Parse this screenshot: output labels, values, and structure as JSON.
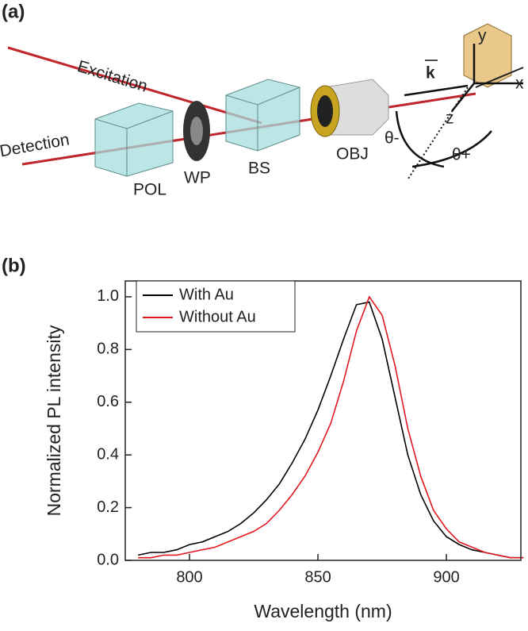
{
  "diagram": {
    "panel_label": "(a)",
    "excitation": "Excitation",
    "detection": "Detection",
    "pol": "POL",
    "wp": "WP",
    "bs": "BS",
    "obj": "OBJ",
    "theta_minus": "θ-",
    "theta_plus": "θ+",
    "axis_x": "x",
    "axis_y": "y",
    "axis_z": "z",
    "wavevector": "k"
  },
  "chart_data": {
    "type": "line",
    "panel_label": "(b)",
    "xlabel": "Wavelength (nm)",
    "ylabel": "Normalized PL intensity",
    "x": [
      780,
      785,
      790,
      795,
      800,
      805,
      810,
      815,
      820,
      825,
      830,
      835,
      840,
      845,
      850,
      855,
      860,
      865,
      870,
      875,
      880,
      885,
      890,
      895,
      900,
      905,
      910,
      915,
      920,
      925,
      930
    ],
    "series": [
      {
        "name": "With Au",
        "color": "#000000",
        "values": [
          0.02,
          0.03,
          0.03,
          0.04,
          0.06,
          0.07,
          0.09,
          0.11,
          0.14,
          0.18,
          0.23,
          0.29,
          0.37,
          0.46,
          0.57,
          0.7,
          0.84,
          0.97,
          0.98,
          0.84,
          0.62,
          0.4,
          0.25,
          0.15,
          0.09,
          0.06,
          0.04,
          0.03,
          0.02,
          0.01,
          0.01
        ]
      },
      {
        "name": "Without Au",
        "color": "#e0191e",
        "values": [
          0.01,
          0.01,
          0.02,
          0.02,
          0.03,
          0.04,
          0.05,
          0.07,
          0.09,
          0.11,
          0.14,
          0.19,
          0.25,
          0.32,
          0.41,
          0.52,
          0.68,
          0.87,
          1.0,
          0.93,
          0.74,
          0.5,
          0.32,
          0.19,
          0.12,
          0.07,
          0.05,
          0.03,
          0.02,
          0.01,
          0.01
        ]
      }
    ],
    "xlim": [
      775,
      929
    ],
    "xticks": [
      800,
      850,
      900
    ],
    "ylim": [
      0,
      1.06
    ],
    "yticks": [
      {
        "value": 0,
        "label": "0.0"
      },
      0.2,
      0.4,
      0.6,
      0.8,
      {
        "value": 1,
        "label": "1.0"
      }
    ],
    "legend": "upper left"
  }
}
